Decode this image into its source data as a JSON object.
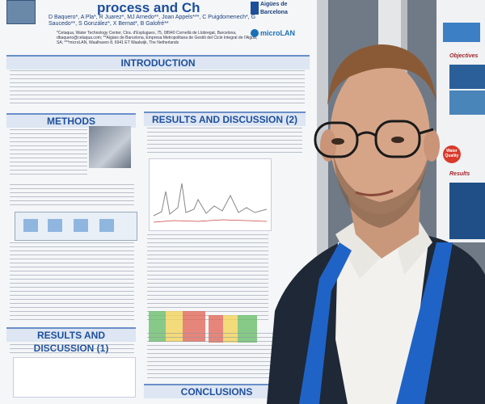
{
  "poster": {
    "title": "process and Ch",
    "authors": "D Baquero*, A Pla*, R Juarez*, MJ Arnedo**, Joan Appels***, C Puigdomenech*, G Saucedo**, S González*, X Bernat*, B Galofré**",
    "affiliation": "*Cetaqua, Water Technology Center, Ctra. d'Esplugues, 75, 08940 Cornellà de Llobregat, Barcelona, dbaquero@cetaqua.com; **Aigües de Barcelona, Empresa Metropolitana de Gestió del Cicle Integral de l'Aigua, SA; ***microLAN, Waalhaven 8, 6941 ET Waalwijk, The Netherlands",
    "logos": [
      "Aigües de",
      "Barcelona",
      "microLAN"
    ],
    "sections": {
      "introduction": "INTRODUCTION",
      "methods": "METHODS",
      "results2": "RESULTS AND DISCUSSION (2)",
      "results1": "RESULTS AND DISCUSSION (1)",
      "conclusions": "CONCLUSIONS"
    }
  },
  "poster2": {
    "objectives": "Objectives",
    "results": "Results",
    "badge": "Water Quality"
  },
  "colors": {
    "poster_bg": "#f4f6f8",
    "section_header": "#1e4f9e",
    "lanyard": "#1f63c6",
    "jacket": "#1f2836"
  }
}
